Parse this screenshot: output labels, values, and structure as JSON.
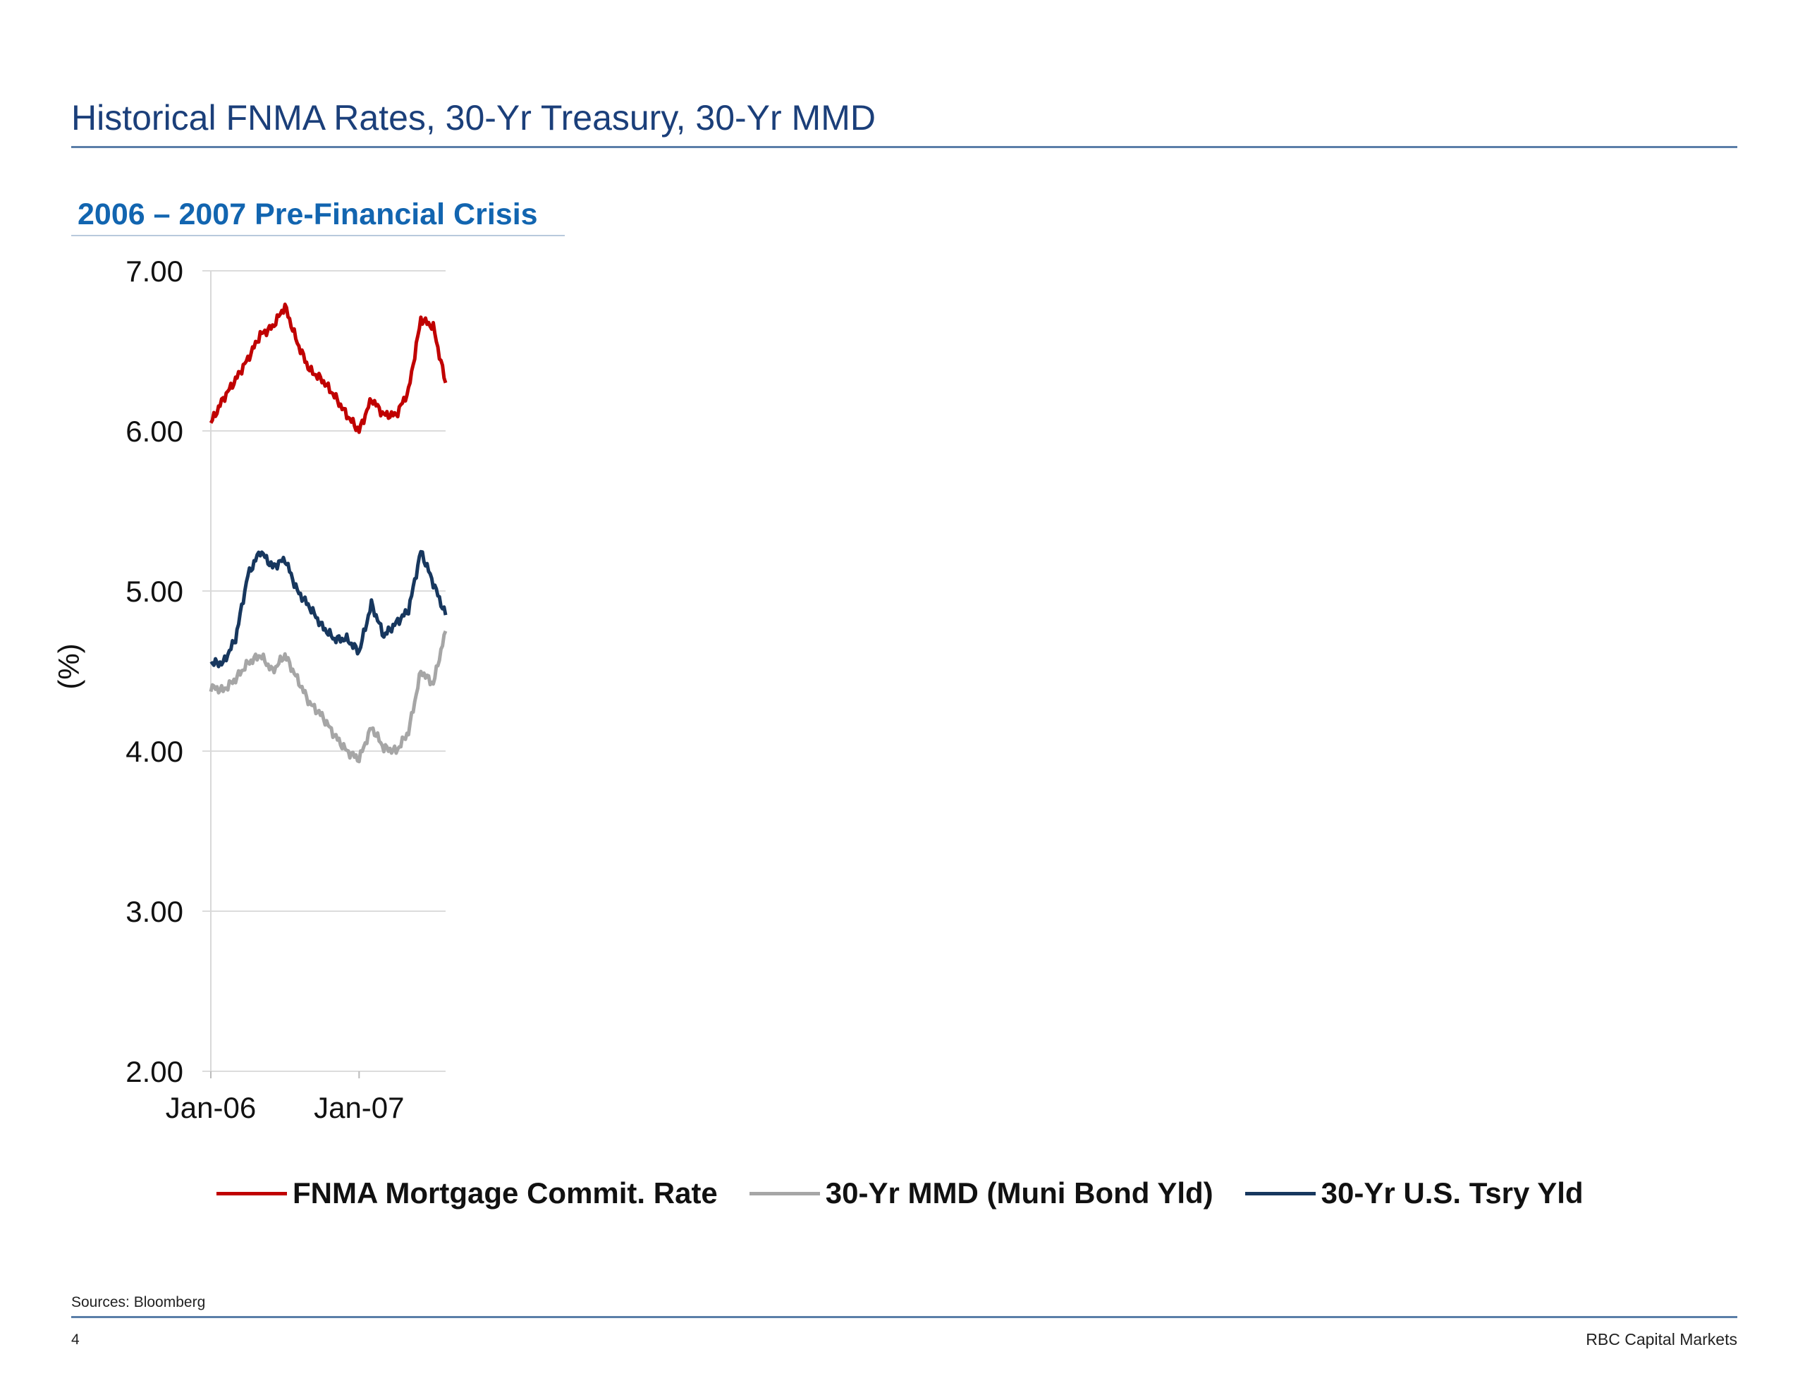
{
  "page": {
    "title": "Historical FNMA Rates, 30-Yr Treasury, 30-Yr MMD",
    "subtitle": "2006 – 2007 Pre-Financial Crisis",
    "sources": "Sources: Bloomberg",
    "page_number": "4",
    "brand": "RBC Capital Markets"
  },
  "legend": {
    "fnma": "FNMA Mortgage Commit. Rate",
    "mmd": "30-Yr MMD (Muni Bond Yld)",
    "tsry": "30-Yr U.S. Tsry Yld"
  },
  "chart_data": {
    "type": "line",
    "ylabel": "(%)",
    "xlabel": "",
    "ylim": [
      2.0,
      7.0
    ],
    "yticks": [
      "7.00",
      "6.00",
      "5.00",
      "4.00",
      "3.00",
      "2.00"
    ],
    "xticks": [
      "Jan-06",
      "Jan-07"
    ],
    "x_range": [
      "2006-01",
      "2007-08"
    ],
    "x": [
      "2006-01",
      "2006-02",
      "2006-03",
      "2006-04",
      "2006-05",
      "2006-06",
      "2006-07",
      "2006-08",
      "2006-09",
      "2006-10",
      "2006-11",
      "2006-12",
      "2007-01",
      "2007-02",
      "2007-03",
      "2007-04",
      "2007-05",
      "2007-06",
      "2007-07",
      "2007-08"
    ],
    "grid": true,
    "legend_position": "bottom",
    "series": [
      {
        "name": "FNMA Mortgage Commit. Rate",
        "color": "#c00000",
        "values": [
          6.05,
          6.2,
          6.32,
          6.45,
          6.6,
          6.65,
          6.78,
          6.55,
          6.38,
          6.32,
          6.22,
          6.1,
          6.0,
          6.2,
          6.1,
          6.1,
          6.25,
          6.7,
          6.65,
          6.3
        ]
      },
      {
        "name": "30-Yr MMD (Muni Bond Yld)",
        "color": "#a6a6a6",
        "values": [
          4.4,
          4.38,
          4.45,
          4.55,
          4.6,
          4.5,
          4.6,
          4.45,
          4.3,
          4.22,
          4.1,
          4.0,
          3.95,
          4.15,
          4.02,
          4.0,
          4.12,
          4.5,
          4.42,
          4.75
        ]
      },
      {
        "name": "30-Yr U.S. Tsry Yld",
        "color": "#17375e",
        "values": [
          4.55,
          4.55,
          4.7,
          5.1,
          5.25,
          5.15,
          5.2,
          5.0,
          4.9,
          4.78,
          4.7,
          4.7,
          4.62,
          4.92,
          4.72,
          4.8,
          4.88,
          5.25,
          5.05,
          4.85
        ]
      }
    ]
  }
}
